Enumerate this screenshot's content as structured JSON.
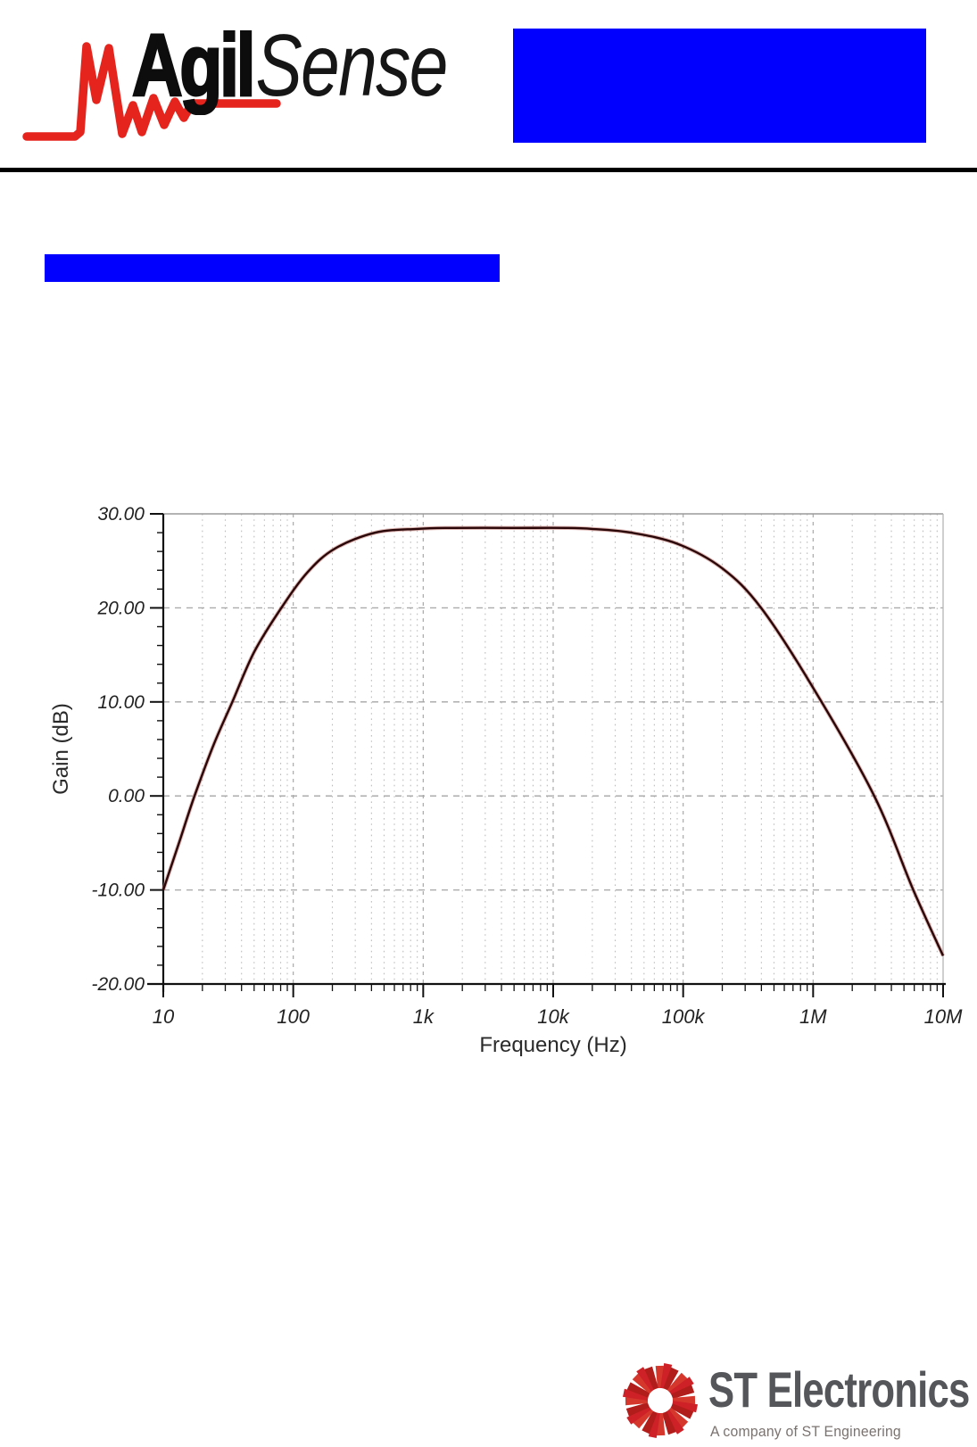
{
  "header": {
    "brand": {
      "word_bold": "Agil",
      "word_italic": "Sense",
      "wave_color": "#e6241e",
      "text_color": "#0d0d0d"
    },
    "redaction_top_right": {
      "color": "#0100fe"
    },
    "divider_color": "#000000"
  },
  "body": {
    "redaction_heading_bar": {
      "color": "#0100fe"
    }
  },
  "chart_data": {
    "type": "line",
    "title": "",
    "xlabel": "Frequency (Hz)",
    "ylabel": "Gain (dB)",
    "x_scale": "log10",
    "xlim_hz": [
      10,
      10000000
    ],
    "ylim": [
      -20,
      30
    ],
    "grid": "dashed-gray-minor-log",
    "legend": "none",
    "x_ticks": [
      {
        "logf": 1,
        "label": "10"
      },
      {
        "logf": 2,
        "label": "100"
      },
      {
        "logf": 3,
        "label": "1k"
      },
      {
        "logf": 4,
        "label": "10k"
      },
      {
        "logf": 5,
        "label": "100k"
      },
      {
        "logf": 6,
        "label": "1M"
      },
      {
        "logf": 7,
        "label": "10M"
      }
    ],
    "y_ticks": [
      {
        "value": 30,
        "label": "30.00"
      },
      {
        "value": 20,
        "label": "20.00"
      },
      {
        "value": 10,
        "label": "10.00"
      },
      {
        "value": 0,
        "label": "0.00"
      },
      {
        "value": -10,
        "label": "-10.00"
      },
      {
        "value": -20,
        "label": "-20.00"
      }
    ],
    "series": [
      {
        "name": "gain_response",
        "color": "#2a0608",
        "points_hz_db": [
          [
            10,
            -10.0
          ],
          [
            13.2,
            -5.0
          ],
          [
            17.4,
            0.0
          ],
          [
            24.5,
            5.5
          ],
          [
            34,
            10.0
          ],
          [
            50,
            15.3
          ],
          [
            81,
            20.0
          ],
          [
            129,
            23.8
          ],
          [
            209,
            26.3
          ],
          [
            427,
            28.0
          ],
          [
            891,
            28.4
          ],
          [
            1500,
            28.5
          ],
          [
            5000,
            28.5
          ],
          [
            12600,
            28.5
          ],
          [
            20000,
            28.4
          ],
          [
            40000,
            28.0
          ],
          [
            91000,
            26.8
          ],
          [
            200000,
            24.2
          ],
          [
            398000,
            20.0
          ],
          [
            1000000,
            11.5
          ],
          [
            2950000,
            0.0
          ],
          [
            5900000,
            -10.0
          ],
          [
            10000000,
            -17.0
          ]
        ]
      }
    ],
    "readings": {
      "passband_gain_db": 28.5,
      "gain_at_10hz_db": -10,
      "gain_at_10mhz_db": -17
    }
  },
  "footer": {
    "st_logo": {
      "name": "ST Electronics",
      "tagline": "A company of ST Engineering",
      "text_color": "#54565a",
      "tagline_color": "#7b7370",
      "icon_color": "#cd2027"
    }
  }
}
